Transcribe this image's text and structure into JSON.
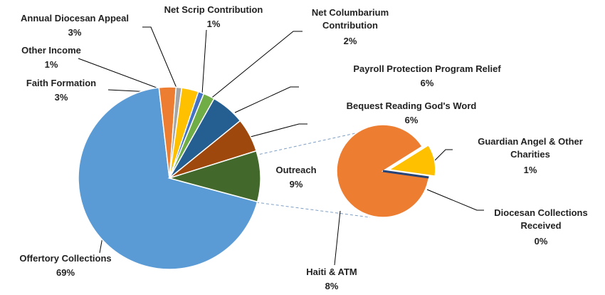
{
  "chart_data": [
    {
      "type": "pie",
      "categories": [
        "Offertory Collections",
        "Faith Formation",
        "Other Income",
        "Annual Diocesan Appeal",
        "Net Scrip Contribution",
        "Net Columbarium Contribution",
        "Payroll Protection Program Relief",
        "Bequest Reading God's Word",
        "Outreach"
      ],
      "values": [
        69,
        3,
        1,
        3,
        1,
        2,
        6,
        6,
        9
      ],
      "value_labels": [
        "69%",
        "3%",
        "1%",
        "3%",
        "1%",
        "2%",
        "6%",
        "6%",
        "9%"
      ],
      "colors": [
        "#5b9bd5",
        "#ed7d31",
        "#a5a5a5",
        "#ffc000",
        "#4472c4",
        "#70ad47",
        "#255e91",
        "#9e480e",
        "#43682b"
      ]
    },
    {
      "type": "pie",
      "categories": [
        "Haiti & ATM",
        "Guardian Angel & Other Charities",
        "Diocesan Collections Received"
      ],
      "values": [
        8,
        1,
        0
      ],
      "value_labels": [
        "8%",
        "1%",
        "0%"
      ],
      "colors": [
        "#ed7d31",
        "#ffc000",
        "#264478"
      ],
      "explode": [
        false,
        true,
        false
      ]
    }
  ]
}
